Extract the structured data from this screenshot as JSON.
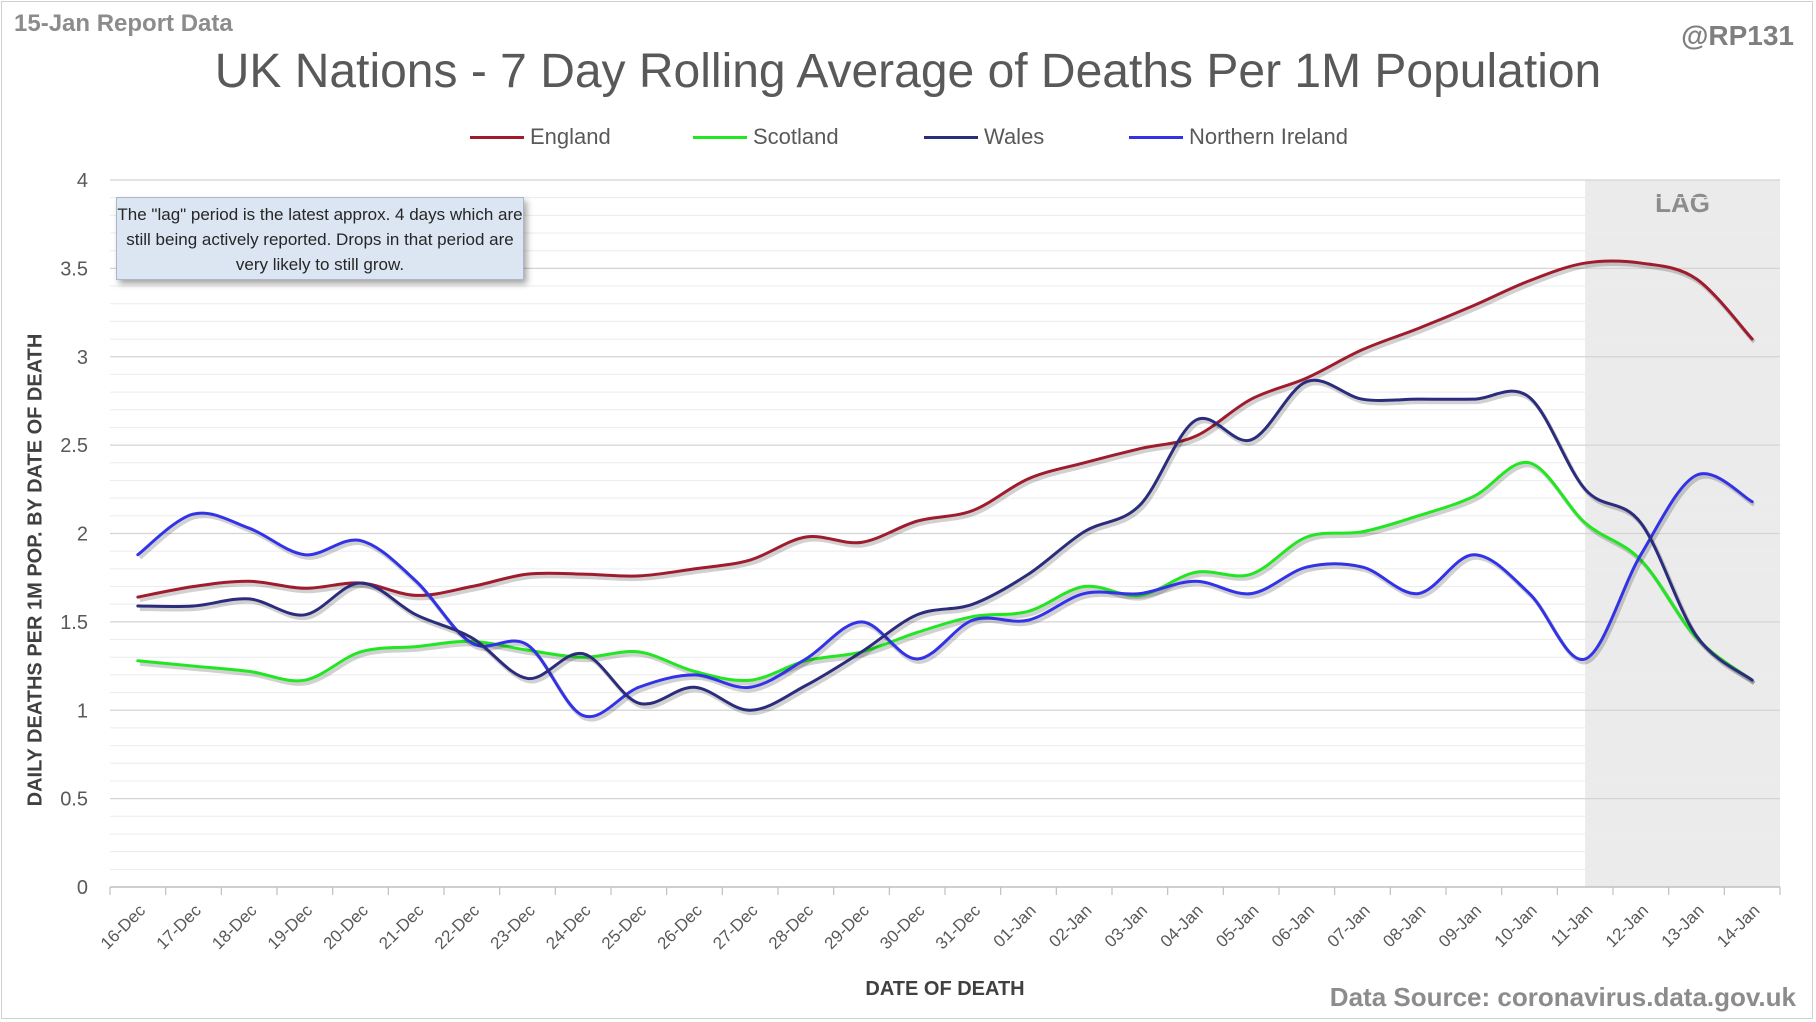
{
  "report_label": "15-Jan Report Data",
  "handle": "@RP131",
  "source": "Data Source: coronavirus.data.gov.uk",
  "note": "The \"lag\" period is the latest approx. 4 days which are still being actively reported. Drops in that period are very likely to still grow.",
  "chart_data": {
    "type": "line",
    "title": "UK Nations - 7 Day Rolling Average of Deaths Per 1M Population",
    "xlabel": "DATE OF DEATH",
    "ylabel": "DAILY DEATHS PER 1M POP. BY DATE OF DEATH",
    "ylim": [
      0,
      4
    ],
    "yticks": [
      "0",
      "0.5",
      "1",
      "1.5",
      "2",
      "2.5",
      "3",
      "3.5",
      "4"
    ],
    "grid": true,
    "legend_position": "top",
    "lag_label": "LAG",
    "lag_start": "11-Jan",
    "categories": [
      "16-Dec",
      "17-Dec",
      "18-Dec",
      "19-Dec",
      "20-Dec",
      "21-Dec",
      "22-Dec",
      "23-Dec",
      "24-Dec",
      "25-Dec",
      "26-Dec",
      "27-Dec",
      "28-Dec",
      "29-Dec",
      "30-Dec",
      "31-Dec",
      "01-Jan",
      "02-Jan",
      "03-Jan",
      "04-Jan",
      "05-Jan",
      "06-Jan",
      "07-Jan",
      "08-Jan",
      "09-Jan",
      "10-Jan",
      "11-Jan",
      "12-Jan",
      "13-Jan",
      "14-Jan"
    ],
    "series": [
      {
        "name": "England",
        "color": "#9e1c2e",
        "values": [
          1.64,
          1.7,
          1.73,
          1.69,
          1.72,
          1.65,
          1.7,
          1.77,
          1.77,
          1.76,
          1.8,
          1.85,
          1.98,
          1.95,
          2.07,
          2.13,
          2.31,
          2.4,
          2.48,
          2.55,
          2.76,
          2.88,
          3.04,
          3.16,
          3.29,
          3.43,
          3.53,
          3.53,
          3.44,
          3.1
        ]
      },
      {
        "name": "Scotland",
        "color": "#22e622",
        "values": [
          1.28,
          1.25,
          1.22,
          1.17,
          1.33,
          1.36,
          1.39,
          1.34,
          1.3,
          1.33,
          1.22,
          1.17,
          1.28,
          1.33,
          1.44,
          1.53,
          1.56,
          1.7,
          1.65,
          1.78,
          1.77,
          1.98,
          2.01,
          2.1,
          2.21,
          2.4,
          2.06,
          1.85,
          1.41,
          1.17
        ]
      },
      {
        "name": "Wales",
        "color": "#2c2c7c",
        "values": [
          1.59,
          1.59,
          1.63,
          1.54,
          1.72,
          1.54,
          1.41,
          1.18,
          1.32,
          1.04,
          1.13,
          1.0,
          1.14,
          1.33,
          1.54,
          1.6,
          1.77,
          2.01,
          2.16,
          2.64,
          2.53,
          2.86,
          2.76,
          2.76,
          2.76,
          2.77,
          2.25,
          2.06,
          1.42,
          1.17
        ]
      },
      {
        "name": "Northern Ireland",
        "color": "#3232e6",
        "values": [
          1.88,
          2.11,
          2.03,
          1.88,
          1.96,
          1.73,
          1.38,
          1.37,
          0.97,
          1.13,
          1.2,
          1.13,
          1.29,
          1.5,
          1.29,
          1.51,
          1.51,
          1.66,
          1.66,
          1.73,
          1.66,
          1.81,
          1.81,
          1.66,
          1.88,
          1.66,
          1.29,
          1.88,
          2.33,
          2.18
        ]
      }
    ]
  }
}
